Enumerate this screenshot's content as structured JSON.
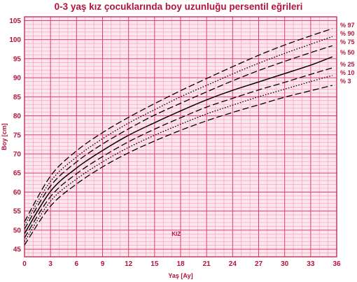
{
  "chart_data": {
    "type": "line",
    "title": "0-3 yaş kız çocuklarında boy uzunluğu persentil eğrileri",
    "xlabel": "Yaş [Ay]",
    "ylabel": "Boy [cm]",
    "annotation": "KIZ",
    "xlim": [
      0,
      36
    ],
    "ylim": [
      43,
      106
    ],
    "x_ticks": [
      0,
      3,
      6,
      9,
      12,
      15,
      18,
      21,
      24,
      27,
      30,
      33,
      36
    ],
    "y_ticks": [
      45,
      50,
      55,
      60,
      65,
      70,
      75,
      80,
      85,
      90,
      95,
      100,
      105
    ],
    "grid": true,
    "x": [
      0,
      3,
      6,
      9,
      12,
      15,
      18,
      21,
      24,
      27,
      30,
      33,
      35.5
    ],
    "series": [
      {
        "name": "% 97",
        "style": "dashed",
        "values": [
          52.2,
          64.2,
          70.8,
          75.6,
          79.6,
          83.2,
          86.6,
          89.8,
          92.9,
          95.9,
          98.6,
          101.0,
          102.9
        ]
      },
      {
        "name": "% 90",
        "style": "dotted",
        "values": [
          51.3,
          62.8,
          69.2,
          74.0,
          78.1,
          81.6,
          85.0,
          88.0,
          91.0,
          93.8,
          96.4,
          98.8,
          100.8
        ]
      },
      {
        "name": "% 75",
        "style": "dashed",
        "values": [
          50.3,
          61.6,
          67.9,
          72.6,
          76.6,
          80.2,
          83.3,
          86.3,
          89.2,
          91.9,
          94.3,
          96.6,
          98.4
        ]
      },
      {
        "name": "% 50",
        "style": "solid",
        "values": [
          49.1,
          60.2,
          66.3,
          70.9,
          74.9,
          78.2,
          81.3,
          84.2,
          86.7,
          88.9,
          91.1,
          93.3,
          95.5
        ]
      },
      {
        "name": "% 25",
        "style": "dashed",
        "values": [
          48.0,
          58.8,
          64.8,
          69.3,
          73.2,
          76.5,
          79.5,
          82.3,
          84.6,
          86.8,
          88.8,
          90.9,
          92.6
        ]
      },
      {
        "name": "% 10",
        "style": "dotted",
        "values": [
          47.0,
          57.6,
          63.4,
          67.9,
          71.7,
          74.9,
          77.8,
          80.5,
          82.8,
          85.0,
          87.0,
          89.0,
          90.6
        ]
      },
      {
        "name": "% 3",
        "style": "dashed",
        "values": [
          46.1,
          56.3,
          62.1,
          66.6,
          70.3,
          73.4,
          76.2,
          78.7,
          80.9,
          82.9,
          84.9,
          86.6,
          88.0
        ]
      }
    ]
  },
  "colors": {
    "accent": "#b4143c",
    "grid_major": "#e33c6e",
    "grid_minor": "#f19ab6",
    "background": "#fde6ee",
    "curve": "#000000"
  }
}
